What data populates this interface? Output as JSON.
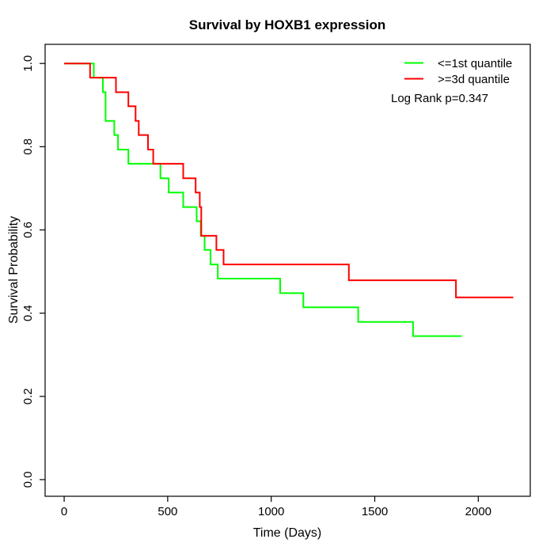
{
  "chart_data": {
    "type": "line",
    "subtype": "kaplan-meier-step",
    "title": "Survival by HOXB1 expression",
    "xlabel": "Time (Days)",
    "ylabel": "Survival Probability",
    "xlim": [
      -92,
      2251
    ],
    "ylim": [
      -0.04,
      1.046
    ],
    "x_ticks": [
      0,
      500,
      1000,
      1500,
      2000
    ],
    "x_tick_labels": [
      "0",
      "500",
      "1000",
      "1500",
      "2000"
    ],
    "y_ticks": [
      0.0,
      0.2,
      0.4,
      0.6,
      0.8,
      1.0
    ],
    "y_tick_labels": [
      "0.0",
      "0.2",
      "0.4",
      "0.6",
      "0.8",
      "1.0"
    ],
    "grid": false,
    "legend_position": "top-right",
    "annotation": "Log Rank p=0.347",
    "axis_color": "#000000",
    "background_color": "#ffffff",
    "series": [
      {
        "name": "<=1st quantile",
        "color": "#00ff00",
        "steps": [
          [
            0,
            1.0
          ],
          [
            143,
            0.966
          ],
          [
            187,
            0.931
          ],
          [
            200,
            0.862
          ],
          [
            242,
            0.828
          ],
          [
            260,
            0.793
          ],
          [
            310,
            0.759
          ],
          [
            465,
            0.724
          ],
          [
            505,
            0.69
          ],
          [
            575,
            0.655
          ],
          [
            640,
            0.621
          ],
          [
            660,
            0.586
          ],
          [
            678,
            0.552
          ],
          [
            707,
            0.517
          ],
          [
            742,
            0.483
          ],
          [
            1043,
            0.448
          ],
          [
            1155,
            0.414
          ],
          [
            1420,
            0.379
          ],
          [
            1685,
            0.345
          ]
        ],
        "end_time": 1920
      },
      {
        "name": ">=3d quantile",
        "color": "#ff0000",
        "steps": [
          [
            0,
            1.0
          ],
          [
            125,
            0.966
          ],
          [
            250,
            0.931
          ],
          [
            310,
            0.897
          ],
          [
            345,
            0.862
          ],
          [
            360,
            0.828
          ],
          [
            405,
            0.793
          ],
          [
            430,
            0.759
          ],
          [
            575,
            0.724
          ],
          [
            635,
            0.69
          ],
          [
            655,
            0.655
          ],
          [
            662,
            0.586
          ],
          [
            735,
            0.552
          ],
          [
            770,
            0.517
          ],
          [
            1375,
            0.479
          ],
          [
            1892,
            0.438
          ]
        ],
        "end_time": 2169
      }
    ]
  }
}
